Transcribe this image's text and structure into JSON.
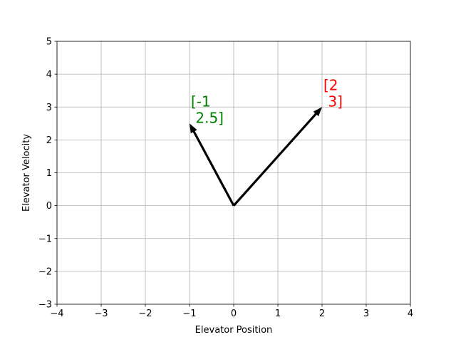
{
  "chart_data": {
    "type": "scatter",
    "title": "",
    "xlabel": "Elevator Position",
    "ylabel": "Elevator Velocity",
    "xlim": [
      -4,
      4
    ],
    "ylim": [
      -3,
      5
    ],
    "xticks": [
      -4,
      -3,
      -2,
      -1,
      0,
      1,
      2,
      3,
      4
    ],
    "yticks": [
      -3,
      -2,
      -1,
      0,
      1,
      2,
      3,
      4,
      5
    ],
    "xtick_labels": [
      "−4",
      "−3",
      "−2",
      "−1",
      "0",
      "1",
      "2",
      "3",
      "4"
    ],
    "ytick_labels": [
      "−3",
      "−2",
      "−1",
      "0",
      "1",
      "2",
      "3",
      "4",
      "5"
    ],
    "grid": true,
    "vectors": [
      {
        "origin": [
          0,
          0
        ],
        "end": [
          2,
          3
        ],
        "label_lines": [
          "[2",
          " 3]"
        ],
        "color": "#ff0000",
        "arrow_color": "#000000"
      },
      {
        "origin": [
          0,
          0
        ],
        "end": [
          -1,
          2.5
        ],
        "label_lines": [
          "[-1",
          " 2.5]"
        ],
        "color": "#008000",
        "arrow_color": "#000000"
      }
    ]
  }
}
